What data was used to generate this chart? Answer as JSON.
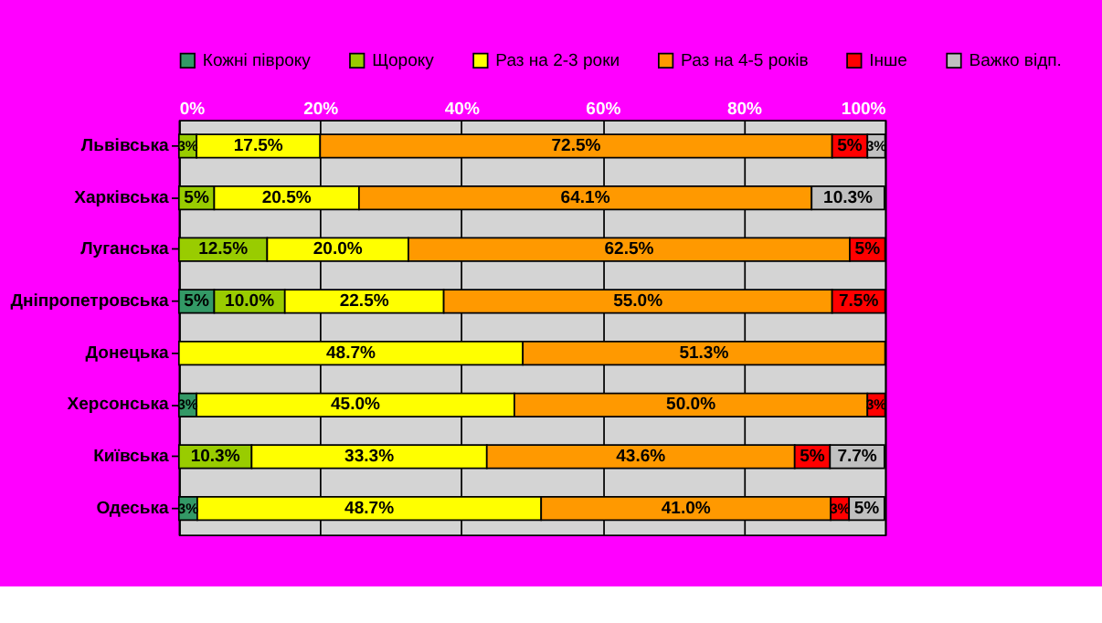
{
  "chart_data": {
    "type": "bar",
    "orientation": "horizontal",
    "stacked": true,
    "categories": [
      "Львівська",
      "Харківська",
      "Луганська",
      "Дніпропетровська",
      "Донецька",
      "Херсонська",
      "Київська",
      "Одеська"
    ],
    "series": [
      {
        "name": "Кожні півроку",
        "color": "#339966",
        "values": [
          null,
          null,
          null,
          5,
          null,
          2.5,
          null,
          2.6
        ],
        "value_labels": [
          null,
          null,
          null,
          "5%",
          null,
          "3%",
          null,
          "3%"
        ]
      },
      {
        "name": "Щороку",
        "color": "#99cc00",
        "values": [
          2.5,
          5,
          12.5,
          10.0,
          null,
          null,
          10.3,
          null
        ],
        "value_labels": [
          "3%",
          "5%",
          "12.5%",
          "10.0%",
          null,
          null,
          "10.3%",
          null
        ]
      },
      {
        "name": "Раз на 2-3 роки",
        "color": "#ffff00",
        "values": [
          17.5,
          20.5,
          20.0,
          22.5,
          48.7,
          45.0,
          33.3,
          48.7
        ],
        "value_labels": [
          "17.5%",
          "20.5%",
          "20.0%",
          "22.5%",
          "48.7%",
          "45.0%",
          "33.3%",
          "48.7%"
        ]
      },
      {
        "name": "Раз на 4-5 років",
        "color": "#ff9900",
        "values": [
          72.5,
          64.1,
          62.5,
          55.0,
          51.3,
          50.0,
          43.6,
          41.0
        ],
        "value_labels": [
          "72.5%",
          "64.1%",
          "62.5%",
          "55.0%",
          "51.3%",
          "50.0%",
          "43.6%",
          "41.0%"
        ]
      },
      {
        "name": "Інше",
        "color": "#ff0000",
        "values": [
          5,
          null,
          5,
          7.5,
          null,
          2.5,
          5,
          2.6
        ],
        "value_labels": [
          "5%",
          null,
          "5%",
          "7.5%",
          null,
          "3%",
          "5%",
          "3%"
        ]
      },
      {
        "name": "Важко відп.",
        "color": "#c0c0c0",
        "values": [
          2.5,
          10.3,
          null,
          null,
          null,
          null,
          7.7,
          5
        ],
        "value_labels": [
          "3%",
          "10.3%",
          null,
          null,
          null,
          null,
          "7.7%",
          "5%"
        ]
      }
    ],
    "xlim": [
      0,
      100
    ],
    "xticks": [
      {
        "value": 0,
        "label": "0%"
      },
      {
        "value": 20,
        "label": "20%"
      },
      {
        "value": 40,
        "label": "40%"
      },
      {
        "value": 60,
        "label": "60%"
      },
      {
        "value": 80,
        "label": "80%"
      },
      {
        "value": 100,
        "label": "100%"
      }
    ],
    "grid": "x",
    "legend": "top"
  }
}
